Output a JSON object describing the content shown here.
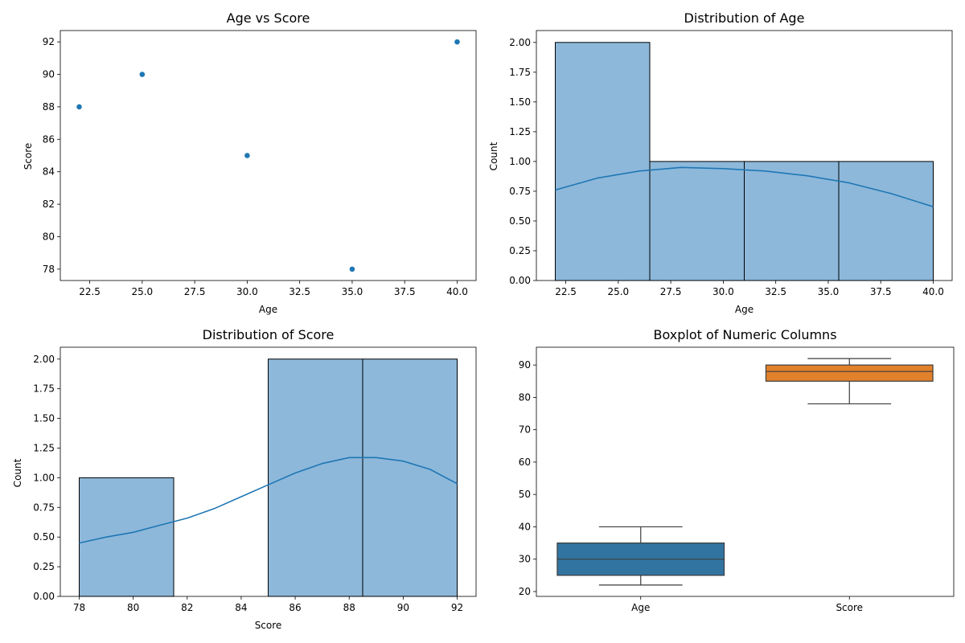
{
  "colors": {
    "blue": "#1f77b4",
    "blue_fill": "#8db8da",
    "blue_box": "#3274a1",
    "orange_box": "#e1812c",
    "whisker": "#3d3d3d"
  },
  "chart_data": [
    {
      "type": "scatter",
      "title": "Age vs Score",
      "xlabel": "Age",
      "ylabel": "Score",
      "x": [
        22,
        25,
        30,
        35,
        40
      ],
      "y": [
        88,
        90,
        85,
        78,
        92
      ],
      "xlim": [
        21.1,
        40.9
      ],
      "ylim": [
        77.3,
        92.7
      ],
      "xticks": [
        22.5,
        25.0,
        27.5,
        30.0,
        32.5,
        35.0,
        37.5,
        40.0
      ],
      "xtick_labels": [
        "22.5",
        "25.0",
        "27.5",
        "30.0",
        "32.5",
        "35.0",
        "37.5",
        "40.0"
      ],
      "yticks": [
        78,
        80,
        82,
        84,
        86,
        88,
        90,
        92
      ],
      "ytick_labels": [
        "78",
        "80",
        "82",
        "84",
        "86",
        "88",
        "90",
        "92"
      ],
      "grid": false
    },
    {
      "type": "bar",
      "subtype": "histogram_with_kde",
      "title": "Distribution of Age",
      "xlabel": "Age",
      "ylabel": "Count",
      "bins": [
        [
          22,
          26.5
        ],
        [
          26.5,
          31
        ],
        [
          31,
          35.5
        ],
        [
          35.5,
          40
        ]
      ],
      "values": [
        2,
        1,
        1,
        1
      ],
      "kde_x": [
        22,
        24,
        26,
        28,
        30,
        32,
        34,
        36,
        38,
        40
      ],
      "kde_y": [
        0.76,
        0.86,
        0.92,
        0.95,
        0.94,
        0.92,
        0.88,
        0.82,
        0.73,
        0.62
      ],
      "xlim": [
        21.1,
        40.9
      ],
      "ylim": [
        0,
        2.1
      ],
      "xticks": [
        22.5,
        25.0,
        27.5,
        30.0,
        32.5,
        35.0,
        37.5,
        40.0
      ],
      "xtick_labels": [
        "22.5",
        "25.0",
        "27.5",
        "30.0",
        "32.5",
        "35.0",
        "37.5",
        "40.0"
      ],
      "yticks": [
        0,
        0.25,
        0.5,
        0.75,
        1.0,
        1.25,
        1.5,
        1.75,
        2.0
      ],
      "ytick_labels": [
        "0.00",
        "0.25",
        "0.50",
        "0.75",
        "1.00",
        "1.25",
        "1.50",
        "1.75",
        "2.00"
      ],
      "grid": false
    },
    {
      "type": "bar",
      "subtype": "histogram_with_kde",
      "title": "Distribution of Score",
      "xlabel": "Score",
      "ylabel": "Count",
      "bins": [
        [
          78,
          81.5
        ],
        [
          81.5,
          85
        ],
        [
          85,
          88.5
        ],
        [
          88.5,
          92
        ]
      ],
      "values": [
        1,
        0,
        2,
        2
      ],
      "kde_x": [
        78,
        79,
        80,
        81,
        82,
        83,
        84,
        85,
        86,
        87,
        88,
        89,
        90,
        91,
        92
      ],
      "kde_y": [
        0.45,
        0.5,
        0.54,
        0.6,
        0.66,
        0.74,
        0.84,
        0.94,
        1.04,
        1.12,
        1.17,
        1.17,
        1.14,
        1.07,
        0.95
      ],
      "xlim": [
        77.3,
        92.7
      ],
      "ylim": [
        0,
        2.1
      ],
      "xticks": [
        78,
        80,
        82,
        84,
        86,
        88,
        90,
        92
      ],
      "xtick_labels": [
        "78",
        "80",
        "82",
        "84",
        "86",
        "88",
        "90",
        "92"
      ],
      "yticks": [
        0,
        0.25,
        0.5,
        0.75,
        1.0,
        1.25,
        1.5,
        1.75,
        2.0
      ],
      "ytick_labels": [
        "0.00",
        "0.25",
        "0.50",
        "0.75",
        "1.00",
        "1.25",
        "1.50",
        "1.75",
        "2.00"
      ],
      "grid": false
    },
    {
      "type": "box",
      "title": "Boxplot of Numeric Columns",
      "categories": [
        "Age",
        "Score"
      ],
      "boxes": [
        {
          "name": "Age",
          "min": 22,
          "q1": 25,
          "median": 30,
          "q3": 35,
          "max": 40
        },
        {
          "name": "Score",
          "min": 78,
          "q1": 85,
          "median": 88,
          "q3": 90,
          "max": 92
        }
      ],
      "ylim": [
        18.5,
        95.5
      ],
      "yticks": [
        20,
        30,
        40,
        50,
        60,
        70,
        80,
        90
      ],
      "ytick_labels": [
        "20",
        "30",
        "40",
        "50",
        "60",
        "70",
        "80",
        "90"
      ],
      "grid": false
    }
  ]
}
